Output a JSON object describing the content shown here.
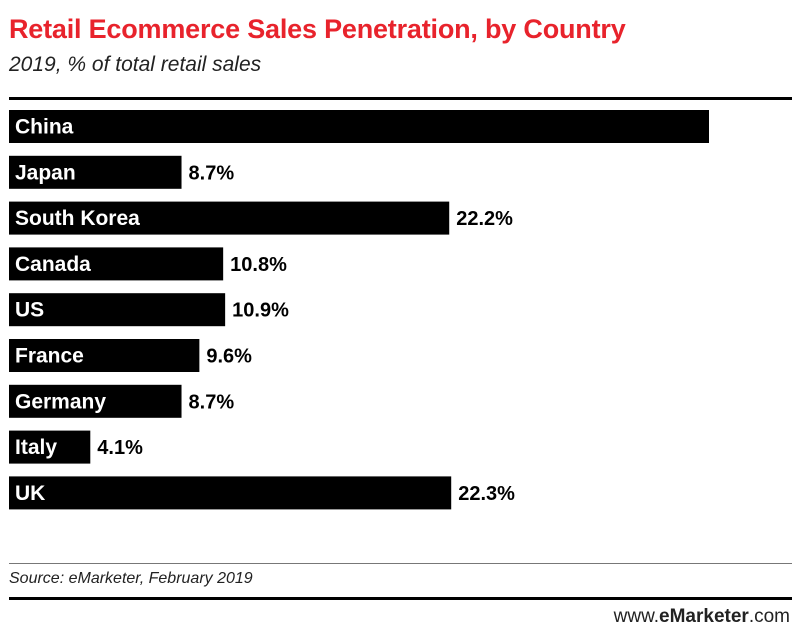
{
  "header": {
    "title": "Retail Ecommerce Sales Penetration, by Country",
    "subtitle": "2019, % of total retail sales"
  },
  "footer": {
    "source": "Source: eMarketer, February 2019",
    "brand_prefix": "www.",
    "brand_name": "eMarketer",
    "brand_suffix": ".com"
  },
  "colors": {
    "title": "#e8232c",
    "bar": "#000000",
    "bar_label": "#ffffff",
    "value_label": "#000000"
  },
  "chart_data": {
    "type": "bar",
    "orientation": "horizontal",
    "title": "Retail Ecommerce Sales Penetration, by Country",
    "subtitle": "2019, % of total retail sales",
    "categories": [
      "China",
      "Japan",
      "South Korea",
      "Canada",
      "US",
      "France",
      "Germany",
      "Italy",
      "UK"
    ],
    "values": [
      35.3,
      8.7,
      22.2,
      10.8,
      10.9,
      9.6,
      8.7,
      4.1,
      22.3
    ],
    "value_labels": [
      "35.3%",
      "8.7%",
      "22.2%",
      "10.8%",
      "10.9%",
      "9.6%",
      "8.7%",
      "4.1%",
      "22.3%"
    ],
    "xlim": [
      0,
      35.3
    ],
    "grid": false,
    "legend": "none"
  }
}
